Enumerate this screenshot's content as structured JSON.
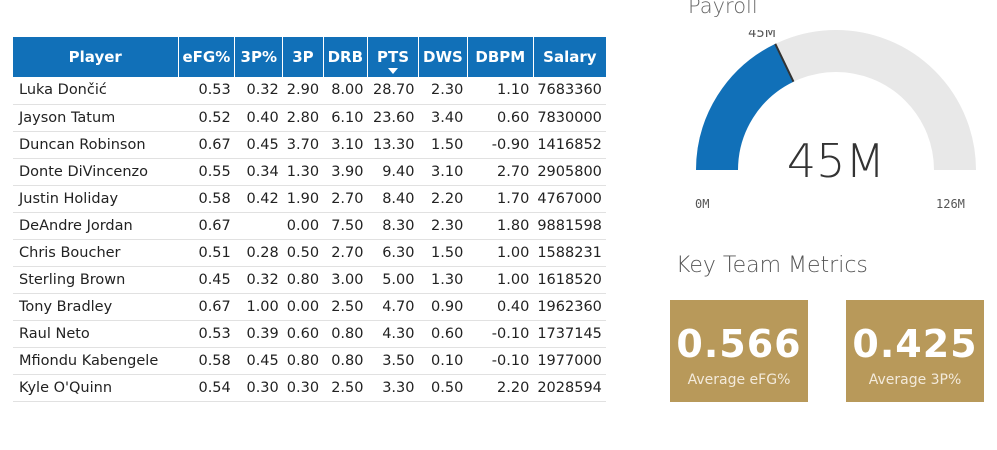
{
  "table": {
    "columns": [
      "Player",
      "eFG%",
      "3P%",
      "3P",
      "DRB",
      "PTS",
      "DWS",
      "DBPM",
      "Salary"
    ],
    "sorted_column": "PTS",
    "rows": [
      [
        "Luka Dončić",
        "0.53",
        "0.32",
        "2.90",
        "8.00",
        "28.70",
        "2.30",
        "1.10",
        "7683360"
      ],
      [
        "Jayson Tatum",
        "0.52",
        "0.40",
        "2.80",
        "6.10",
        "23.60",
        "3.40",
        "0.60",
        "7830000"
      ],
      [
        "Duncan Robinson",
        "0.67",
        "0.45",
        "3.70",
        "3.10",
        "13.30",
        "1.50",
        "-0.90",
        "1416852"
      ],
      [
        "Donte DiVincenzo",
        "0.55",
        "0.34",
        "1.30",
        "3.90",
        "9.40",
        "3.10",
        "2.70",
        "2905800"
      ],
      [
        "Justin Holiday",
        "0.58",
        "0.42",
        "1.90",
        "2.70",
        "8.40",
        "2.20",
        "1.70",
        "4767000"
      ],
      [
        "DeAndre Jordan",
        "0.67",
        "",
        "0.00",
        "7.50",
        "8.30",
        "2.30",
        "1.80",
        "9881598"
      ],
      [
        "Chris Boucher",
        "0.51",
        "0.28",
        "0.50",
        "2.70",
        "6.30",
        "1.50",
        "1.00",
        "1588231"
      ],
      [
        "Sterling Brown",
        "0.45",
        "0.32",
        "0.80",
        "3.00",
        "5.00",
        "1.30",
        "1.00",
        "1618520"
      ],
      [
        "Tony Bradley",
        "0.67",
        "1.00",
        "0.00",
        "2.50",
        "4.70",
        "0.90",
        "0.40",
        "1962360"
      ],
      [
        "Raul Neto",
        "0.53",
        "0.39",
        "0.60",
        "0.80",
        "4.30",
        "0.60",
        "-0.10",
        "1737145"
      ],
      [
        "Mfiondu Kabengele",
        "0.58",
        "0.45",
        "0.80",
        "0.80",
        "3.50",
        "0.10",
        "-0.10",
        "1977000"
      ],
      [
        "Kyle O'Quinn",
        "0.54",
        "0.30",
        "0.30",
        "2.50",
        "3.30",
        "0.50",
        "2.20",
        "2028594"
      ]
    ]
  },
  "payroll": {
    "title": "Payroll",
    "value": 45,
    "value_label": "45M",
    "marker_label": "45M",
    "min": 0,
    "max": 126,
    "min_label": "0M",
    "max_label": "126M",
    "fill_color": "#1170b8",
    "track_color": "#e8e8e8"
  },
  "metrics": {
    "title": "Key Team Metrics",
    "cards": [
      {
        "value": "0.566",
        "label": "Average eFG%"
      },
      {
        "value": "0.425",
        "label": "Average 3P%"
      }
    ],
    "card_color": "#b8995a"
  },
  "colors": {
    "header_blue": "#1170b8",
    "card_gold": "#b8995a"
  }
}
